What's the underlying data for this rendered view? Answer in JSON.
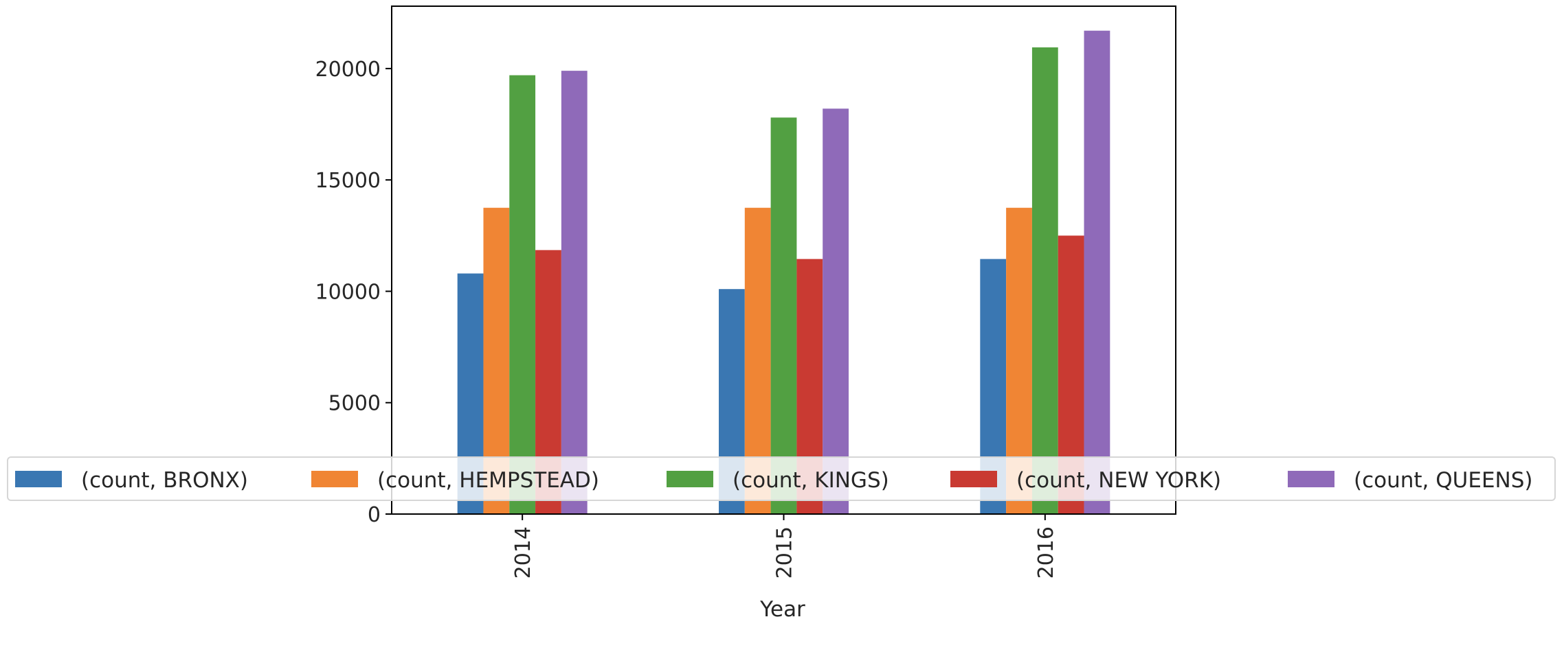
{
  "chart_data": {
    "type": "bar",
    "title": "",
    "xlabel": "Year",
    "ylabel": "",
    "categories": [
      "2014",
      "2015",
      "2016"
    ],
    "ylim": [
      0,
      22800
    ],
    "yticks": [
      0,
      5000,
      10000,
      15000,
      20000
    ],
    "grid": false,
    "legend_position": "bottom (overlapping plot)",
    "series": [
      {
        "name": "(count, BRONX)",
        "color": "#3a77b2",
        "values": [
          10800,
          10100,
          11450
        ]
      },
      {
        "name": "(count, HEMPSTEAD)",
        "color": "#f08534",
        "values": [
          13750,
          13750,
          13750
        ]
      },
      {
        "name": "(count, KINGS)",
        "color": "#52a042",
        "values": [
          19700,
          17800,
          20950
        ]
      },
      {
        "name": "(count, NEW YORK)",
        "color": "#c93a32",
        "values": [
          11850,
          11450,
          12500
        ]
      },
      {
        "name": "(count, QUEENS)",
        "color": "#8f6ab9",
        "values": [
          19900,
          18200,
          21700
        ]
      }
    ]
  }
}
